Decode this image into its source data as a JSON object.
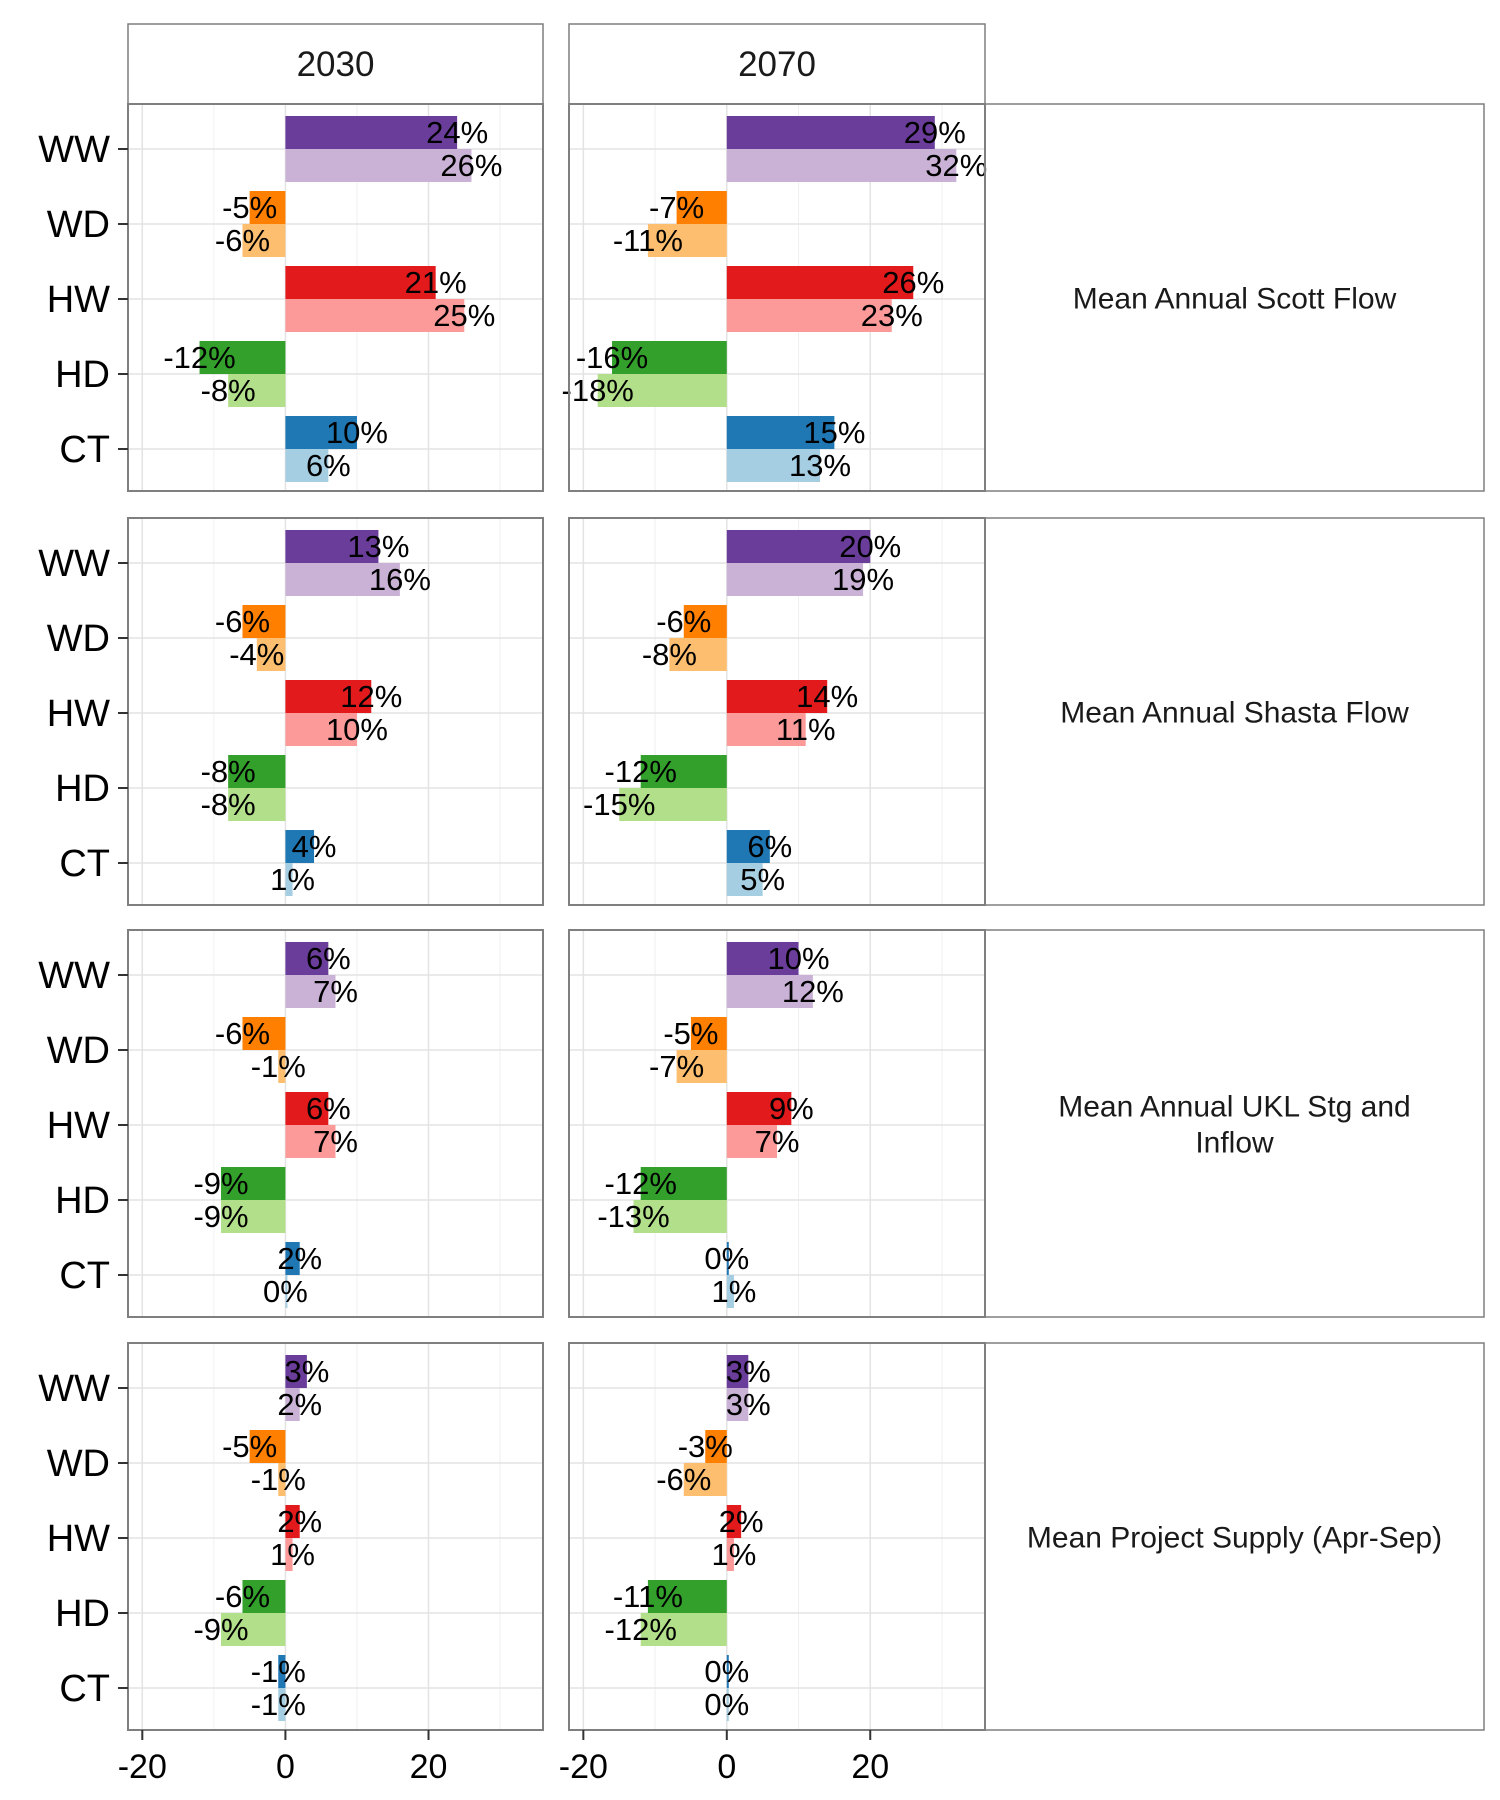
{
  "chart_data": {
    "type": "bar",
    "orientation": "horizontal",
    "columns": [
      "2030",
      "2070"
    ],
    "categories": [
      "WW",
      "WD",
      "HW",
      "HD",
      "CT"
    ],
    "colors": {
      "WW": [
        "#6a3d9a",
        "#cab2d6"
      ],
      "WD": [
        "#ff7f00",
        "#fdbf6f"
      ],
      "HW": [
        "#e31a1c",
        "#fb9a99"
      ],
      "HD": [
        "#33a02c",
        "#b2df8a"
      ],
      "CT": [
        "#1f78b4",
        "#a6cee3"
      ]
    },
    "xlim": [
      -22,
      36
    ],
    "x_ticks": [
      -20,
      0,
      20
    ],
    "x_tick_labels": [
      "-20",
      "0",
      "20"
    ],
    "grid": true,
    "panels": [
      {
        "row_label": "Mean Annual Scott Flow",
        "2030": {
          "WW": [
            24,
            26
          ],
          "WD": [
            -5,
            -6
          ],
          "HW": [
            21,
            25
          ],
          "HD": [
            -12,
            -8
          ],
          "CT": [
            10,
            6
          ]
        },
        "2070": {
          "WW": [
            29,
            32
          ],
          "WD": [
            -7,
            -11
          ],
          "HW": [
            26,
            23
          ],
          "HD": [
            -16,
            -18
          ],
          "CT": [
            15,
            13
          ]
        }
      },
      {
        "row_label": "Mean Annual Shasta Flow",
        "2030": {
          "WW": [
            13,
            16
          ],
          "WD": [
            -6,
            -4
          ],
          "HW": [
            12,
            10
          ],
          "HD": [
            -8,
            -8
          ],
          "CT": [
            4,
            1
          ]
        },
        "2070": {
          "WW": [
            20,
            19
          ],
          "WD": [
            -6,
            -8
          ],
          "HW": [
            14,
            11
          ],
          "HD": [
            -12,
            -15
          ],
          "CT": [
            6,
            5
          ]
        }
      },
      {
        "row_label": "Mean Annual UKL Stg and\nInflow",
        "2030": {
          "WW": [
            6,
            7
          ],
          "WD": [
            -6,
            -1
          ],
          "HW": [
            6,
            7
          ],
          "HD": [
            -9,
            -9
          ],
          "CT": [
            2,
            0
          ]
        },
        "2070": {
          "WW": [
            10,
            12
          ],
          "WD": [
            -5,
            -7
          ],
          "HW": [
            9,
            7
          ],
          "HD": [
            -12,
            -13
          ],
          "CT": [
            0,
            1
          ]
        }
      },
      {
        "row_label": "Mean Project Supply (Apr-Sep)",
        "2030": {
          "WW": [
            3,
            2
          ],
          "WD": [
            -5,
            -1
          ],
          "HW": [
            2,
            1
          ],
          "HD": [
            -6,
            -9
          ],
          "CT": [
            -1,
            -1
          ]
        },
        "2070": {
          "WW": [
            3,
            3
          ],
          "WD": [
            -3,
            -6
          ],
          "HW": [
            2,
            1
          ],
          "HD": [
            -11,
            -12
          ],
          "CT": [
            0,
            0
          ]
        }
      }
    ],
    "label_suffix": "%"
  }
}
